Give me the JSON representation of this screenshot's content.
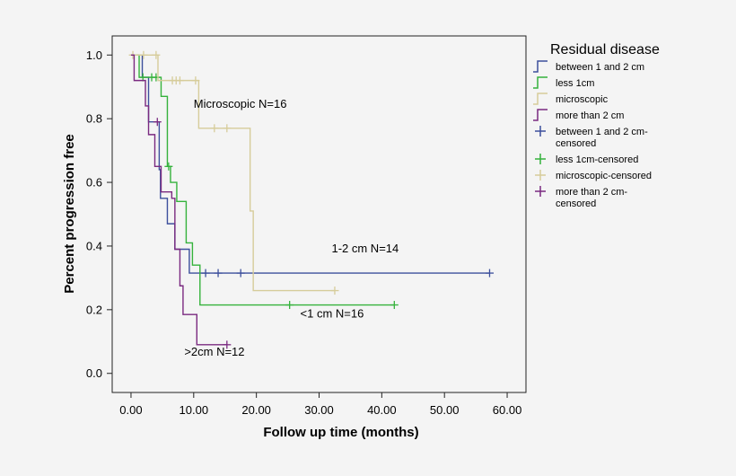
{
  "chart_data": {
    "type": "line",
    "subtype": "kaplan-meier",
    "title": "",
    "xlabel": "Follow up time (months)",
    "ylabel": "Percent progression free",
    "xlim": [
      -3,
      63
    ],
    "ylim": [
      -0.06,
      1.06
    ],
    "x_ticks": [
      0,
      10,
      20,
      30,
      40,
      50,
      60
    ],
    "x_tick_labels": [
      "0.00",
      "10.00",
      "20.00",
      "30.00",
      "40.00",
      "50.00",
      "60.00"
    ],
    "y_ticks": [
      0.0,
      0.2,
      0.4,
      0.6,
      0.8,
      1.0
    ],
    "y_tick_labels": [
      "0.0",
      "0.2",
      "0.4",
      "0.6",
      "0.8",
      "1.0"
    ],
    "grid": false,
    "legend": {
      "title": "Residual disease",
      "placement": "right",
      "entries": [
        {
          "label": "between 1 and 2 cm",
          "marker": "step",
          "color": "#3c4f9c"
        },
        {
          "label": "less 1cm",
          "marker": "step",
          "color": "#35b23c"
        },
        {
          "label": "microscopic",
          "marker": "step",
          "color": "#d6cc9a"
        },
        {
          "label": "more than 2 cm",
          "marker": "step",
          "color": "#7a2a80"
        },
        {
          "label": "between 1 and 2 cm-censored",
          "marker": "plus",
          "color": "#3c4f9c"
        },
        {
          "label": "less 1cm-censored",
          "marker": "plus",
          "color": "#35b23c"
        },
        {
          "label": "microscopic-censored",
          "marker": "plus",
          "color": "#d6cc9a"
        },
        {
          "label": "more than 2 cm-censored",
          "marker": "plus",
          "color": "#7a2a80"
        }
      ]
    },
    "series": [
      {
        "name": "between 1 and 2 cm",
        "color": "#3c4f9c",
        "steps": [
          [
            0,
            1.0
          ],
          [
            1.8,
            0.93
          ],
          [
            2.8,
            0.79
          ],
          [
            4.5,
            0.64
          ],
          [
            4.7,
            0.55
          ],
          [
            5.8,
            0.47
          ],
          [
            7.0,
            0.39
          ],
          [
            9.3,
            0.315
          ],
          [
            57.2,
            0.315
          ]
        ],
        "censored": [
          [
            11.9,
            0.315
          ],
          [
            13.9,
            0.315
          ],
          [
            17.5,
            0.315
          ],
          [
            57.2,
            0.315
          ]
        ]
      },
      {
        "name": "less 1cm",
        "color": "#35b23c",
        "steps": [
          [
            0,
            1.0
          ],
          [
            1.3,
            0.93
          ],
          [
            4.8,
            0.87
          ],
          [
            5.8,
            0.65
          ],
          [
            6.3,
            0.6
          ],
          [
            7.3,
            0.54
          ],
          [
            8.8,
            0.41
          ],
          [
            9.8,
            0.34
          ],
          [
            11.0,
            0.215
          ],
          [
            42.0,
            0.215
          ]
        ],
        "censored": [
          [
            1.9,
            0.93
          ],
          [
            3.3,
            0.93
          ],
          [
            4.0,
            0.93
          ],
          [
            6.0,
            0.65
          ],
          [
            25.3,
            0.215
          ],
          [
            42.0,
            0.215
          ]
        ]
      },
      {
        "name": "microscopic",
        "color": "#d6cc9a",
        "steps": [
          [
            0,
            1.0
          ],
          [
            4.3,
            0.92
          ],
          [
            10.8,
            0.77
          ],
          [
            19.0,
            0.51
          ],
          [
            19.5,
            0.26
          ],
          [
            32.5,
            0.26
          ]
        ],
        "censored": [
          [
            0.3,
            1.0
          ],
          [
            2.0,
            1.0
          ],
          [
            4.0,
            1.0
          ],
          [
            6.6,
            0.92
          ],
          [
            7.2,
            0.92
          ],
          [
            7.8,
            0.92
          ],
          [
            10.3,
            0.92
          ],
          [
            13.3,
            0.77
          ],
          [
            15.3,
            0.77
          ],
          [
            32.5,
            0.26
          ]
        ]
      },
      {
        "name": "more than 2 cm",
        "color": "#7a2a80",
        "steps": [
          [
            0,
            1.0
          ],
          [
            0.5,
            0.92
          ],
          [
            2.3,
            0.84
          ],
          [
            2.8,
            0.75
          ],
          [
            3.8,
            0.65
          ],
          [
            4.8,
            0.57
          ],
          [
            6.5,
            0.55
          ],
          [
            7.0,
            0.39
          ],
          [
            7.8,
            0.275
          ],
          [
            8.3,
            0.185
          ],
          [
            10.5,
            0.09
          ],
          [
            15.3,
            0.09
          ]
        ],
        "censored": [
          [
            4.2,
            0.79
          ],
          [
            15.3,
            0.09
          ]
        ]
      }
    ],
    "annotations": [
      {
        "text": "Microscopic  N=16",
        "x": 10.0,
        "y": 0.835
      },
      {
        "text": "1-2 cm  N=14",
        "x": 32.0,
        "y": 0.38
      },
      {
        "text": "<1 cm  N=16",
        "x": 27.0,
        "y": 0.175
      },
      {
        "text": ">2cm  N=12",
        "x": 8.5,
        "y": 0.055
      }
    ]
  }
}
